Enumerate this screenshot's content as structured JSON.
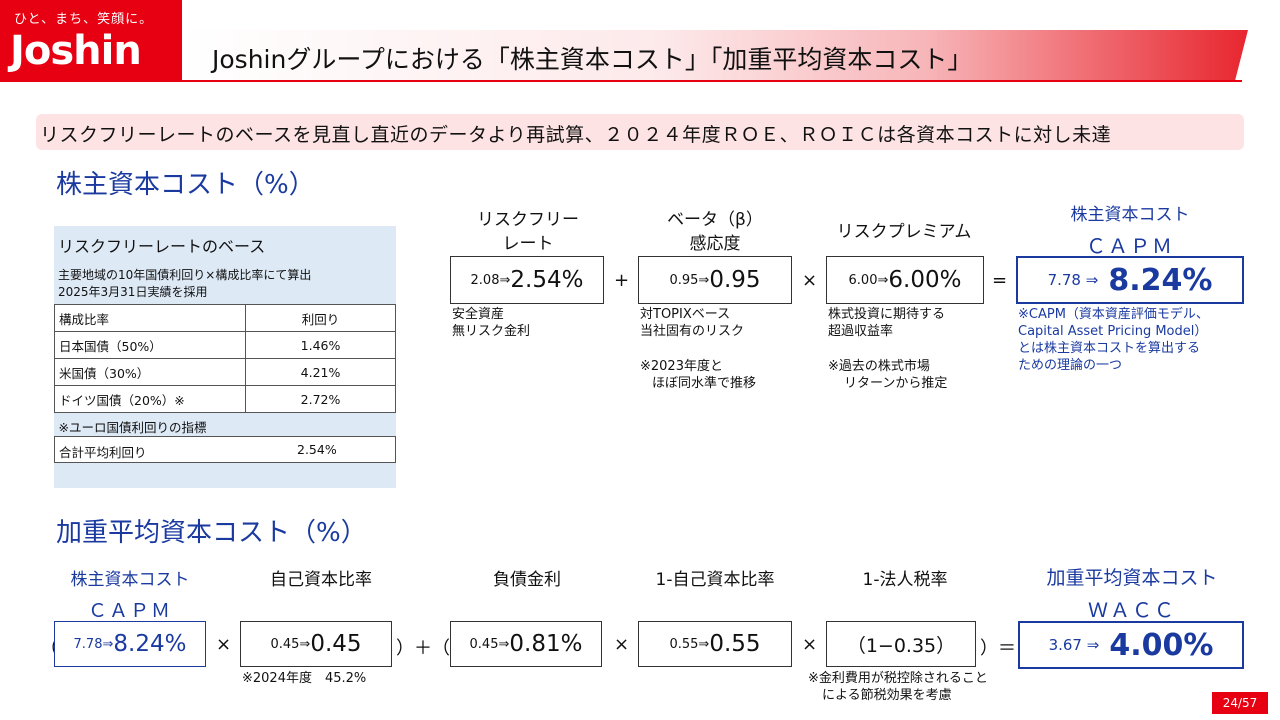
{
  "header": {
    "logo_tagline": "ひと、まち、笑顔に。",
    "logo_name": "Joshin",
    "title": "Joshinグループにおける「株主資本コスト」「加重平均資本コスト」"
  },
  "banner": "リスクフリーレートのベースを見直し直近のデータより再試算、２０２４年度ＲＯＥ、ＲＯＩＣは各資本コストに対し未達",
  "cost_of_equity": {
    "heading": "株主資本コスト（%）",
    "panel": {
      "title": "リスクフリーレートのベース",
      "note1": "主要地域の10年国債利回り×構成比率にて算出",
      "note2": "2025年3月31日実績を採用",
      "col_headers": [
        "構成比率",
        "利回り"
      ],
      "rows": [
        {
          "label": "日本国債（50%）",
          "value": "1.46%"
        },
        {
          "label": "米国債（30%）",
          "value": "4.21%"
        },
        {
          "label": "ドイツ国債（20%）※",
          "value": "2.72%"
        }
      ],
      "footnote": "※ユーロ国債利回りの指標",
      "total_label": "合計平均利回り",
      "total_value": "2.54%"
    },
    "risk_free": {
      "label1": "リスクフリー",
      "label2": "レート",
      "old": "2.08⇒",
      "new": "2.54%",
      "note1": "安全資産",
      "note2": "無リスク金利"
    },
    "beta": {
      "label1": "ベータ（β）",
      "label2": "感応度",
      "old": "0.95⇒",
      "new": "0.95",
      "note1": "対TOPIXベース",
      "note2": "当社固有のリスク",
      "note3": "※2023年度と",
      "note4": "ほぼ同水準で推移"
    },
    "premium": {
      "label": "リスクプレミアム",
      "old": "6.00⇒",
      "new": "6.00%",
      "note1": "株式投資に期待する",
      "note2": "超過収益率",
      "note3": "※過去の株式市場",
      "note4": "リターンから推定"
    },
    "result": {
      "label1": "株主資本コスト",
      "label2": "ＣＡＰＭ",
      "old": "7.78 ⇒",
      "new": "8.24%",
      "note1": "※CAPM（資本資産評価モデル、",
      "note2": "Capital Asset Pricing Model）",
      "note3": "とは株主資本コストを算出する",
      "note4": "ための理論の一つ"
    },
    "ops": {
      "plus": "+",
      "times": "×",
      "equals": "="
    }
  },
  "wacc": {
    "heading": "加重平均資本コスト（%）",
    "capm": {
      "label1": "株主資本コスト",
      "label2": "ＣＡＰＭ",
      "old": "7.78⇒",
      "new": "8.24%"
    },
    "equity_ratio": {
      "label": "自己資本比率",
      "old": "0.45⇒",
      "new": "0.45",
      "note": "※2024年度　45.2%"
    },
    "debt_rate": {
      "label": "負債金利",
      "old": "0.45⇒",
      "new": "0.81%"
    },
    "one_minus_equity": {
      "label": "1-自己資本比率",
      "old": "0.55⇒",
      "new": "0.55"
    },
    "one_minus_tax": {
      "label": "1-法人税率",
      "value": "（1−0.35）",
      "note1": "※金利費用が税控除されること",
      "note2": "による節税効果を考慮"
    },
    "result": {
      "label1": "加重平均資本コスト",
      "label2": "ＷＡＣＣ",
      "old": "3.67 ⇒",
      "new": "4.00%"
    },
    "ops": {
      "open1": "（",
      "times1": "×",
      "close_plus": "）＋（",
      "times2": "×",
      "times3": "×",
      "close_eq": "）＝"
    }
  },
  "page": "24/57",
  "colors": {
    "brand_red": "#e60012",
    "accent_blue": "#1a3aa0",
    "panel_blue": "#dde9f5",
    "banner_pink": "#fde3e4"
  }
}
